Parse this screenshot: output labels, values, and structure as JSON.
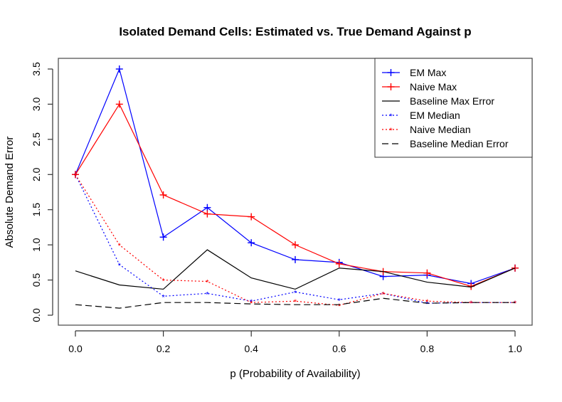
{
  "chart_data": {
    "type": "line",
    "title": "Isolated Demand Cells: Estimated vs. True Demand Against p",
    "xlabel": "p (Probability of Availability)",
    "ylabel": "Absolute Demand Error",
    "x": [
      0.0,
      0.1,
      0.2,
      0.3,
      0.4,
      0.5,
      0.6,
      0.7,
      0.8,
      0.9,
      1.0
    ],
    "xlim": [
      0.0,
      1.0
    ],
    "ylim": [
      0.0,
      3.5
    ],
    "xticks": [
      "0.0",
      "0.2",
      "0.4",
      "0.6",
      "0.8",
      "1.0"
    ],
    "yticks": [
      "0.0",
      "0.5",
      "1.0",
      "1.5",
      "2.0",
      "2.5",
      "3.0",
      "3.5"
    ],
    "grid": false,
    "legend_position": "top-right",
    "series": [
      {
        "name": "EM Max",
        "color": "#0000ff",
        "style": "solid",
        "marker": "plus",
        "values": [
          2.0,
          3.5,
          1.11,
          1.53,
          1.03,
          0.79,
          0.75,
          0.55,
          0.57,
          0.45,
          0.67
        ]
      },
      {
        "name": "Naive Max",
        "color": "#ff0000",
        "style": "solid",
        "marker": "plus",
        "values": [
          2.0,
          3.0,
          1.71,
          1.44,
          1.4,
          1.0,
          0.73,
          0.62,
          0.6,
          0.41,
          0.67
        ]
      },
      {
        "name": "Baseline Max Error",
        "color": "#000000",
        "style": "solid",
        "marker": "none",
        "values": [
          0.63,
          0.43,
          0.37,
          0.93,
          0.53,
          0.37,
          0.67,
          0.62,
          0.47,
          0.4,
          0.67
        ]
      },
      {
        "name": "EM Median",
        "color": "#0000ff",
        "style": "dotted",
        "marker": "star",
        "values": [
          2.0,
          0.72,
          0.27,
          0.31,
          0.2,
          0.33,
          0.22,
          0.31,
          0.17,
          0.18,
          0.18
        ]
      },
      {
        "name": "Naive Median",
        "color": "#ff0000",
        "style": "dotted",
        "marker": "star",
        "values": [
          2.0,
          1.0,
          0.5,
          0.48,
          0.18,
          0.2,
          0.14,
          0.31,
          0.2,
          0.18,
          0.18
        ]
      },
      {
        "name": "Baseline Median Error",
        "color": "#000000",
        "style": "dashed",
        "marker": "none",
        "values": [
          0.15,
          0.1,
          0.18,
          0.18,
          0.16,
          0.15,
          0.15,
          0.24,
          0.17,
          0.18,
          0.18
        ]
      }
    ]
  }
}
